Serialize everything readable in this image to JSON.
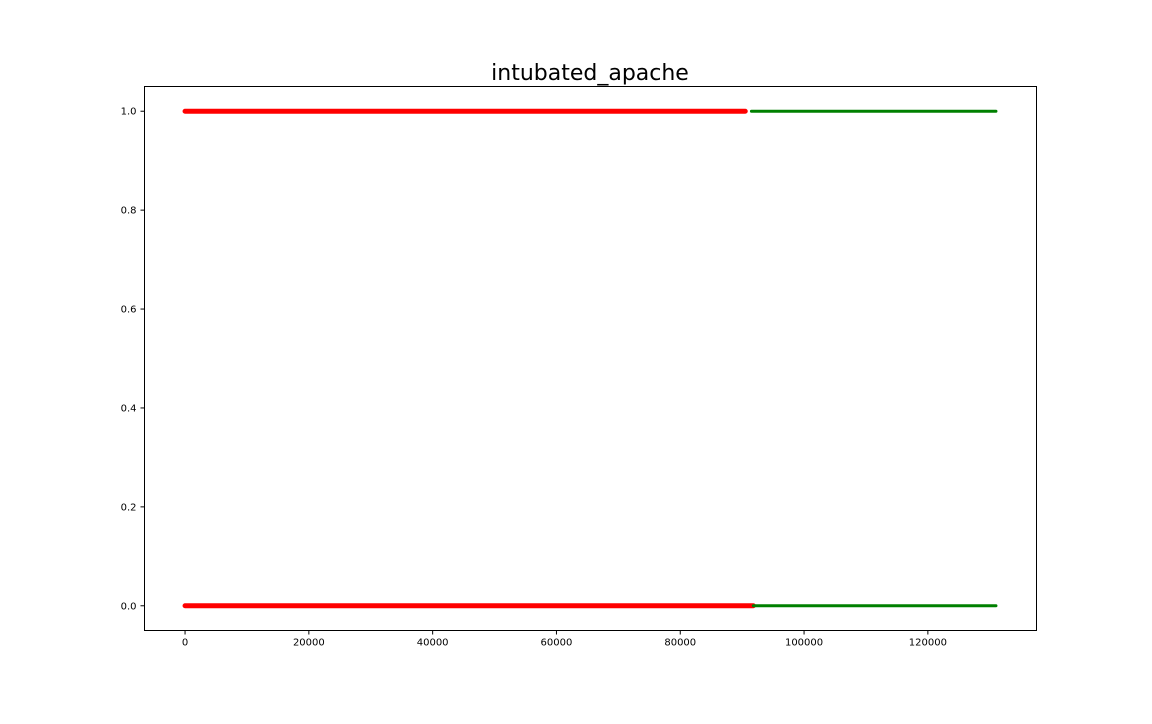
{
  "chart_data": {
    "type": "scatter",
    "title": "intubated_apache",
    "xlabel": "",
    "ylabel": "",
    "xlim": [
      -6550,
      137550
    ],
    "ylim": [
      -0.05,
      1.05
    ],
    "x_ticks": [
      0,
      20000,
      40000,
      60000,
      80000,
      100000,
      120000
    ],
    "x_tick_labels": [
      "0",
      "20000",
      "40000",
      "60000",
      "80000",
      "100000",
      "120000"
    ],
    "y_ticks": [
      0.0,
      0.2,
      0.4,
      0.6,
      0.8,
      1.0
    ],
    "y_tick_labels": [
      "0.0",
      "0.2",
      "0.4",
      "0.6",
      "0.8",
      "1.0"
    ],
    "grid": false,
    "legend": false,
    "series": [
      {
        "color": "#ff0000",
        "points": [
          {
            "y": 1.0,
            "x_range": [
              0,
              90500
            ]
          },
          {
            "y": 0.0,
            "x_range": [
              0,
              91800
            ]
          }
        ]
      },
      {
        "color": "#008000",
        "points": [
          {
            "y": 1.0,
            "x_range": [
              91500,
              131000
            ]
          },
          {
            "y": 0.0,
            "x_range": [
              91800,
              131000
            ]
          }
        ]
      }
    ]
  }
}
